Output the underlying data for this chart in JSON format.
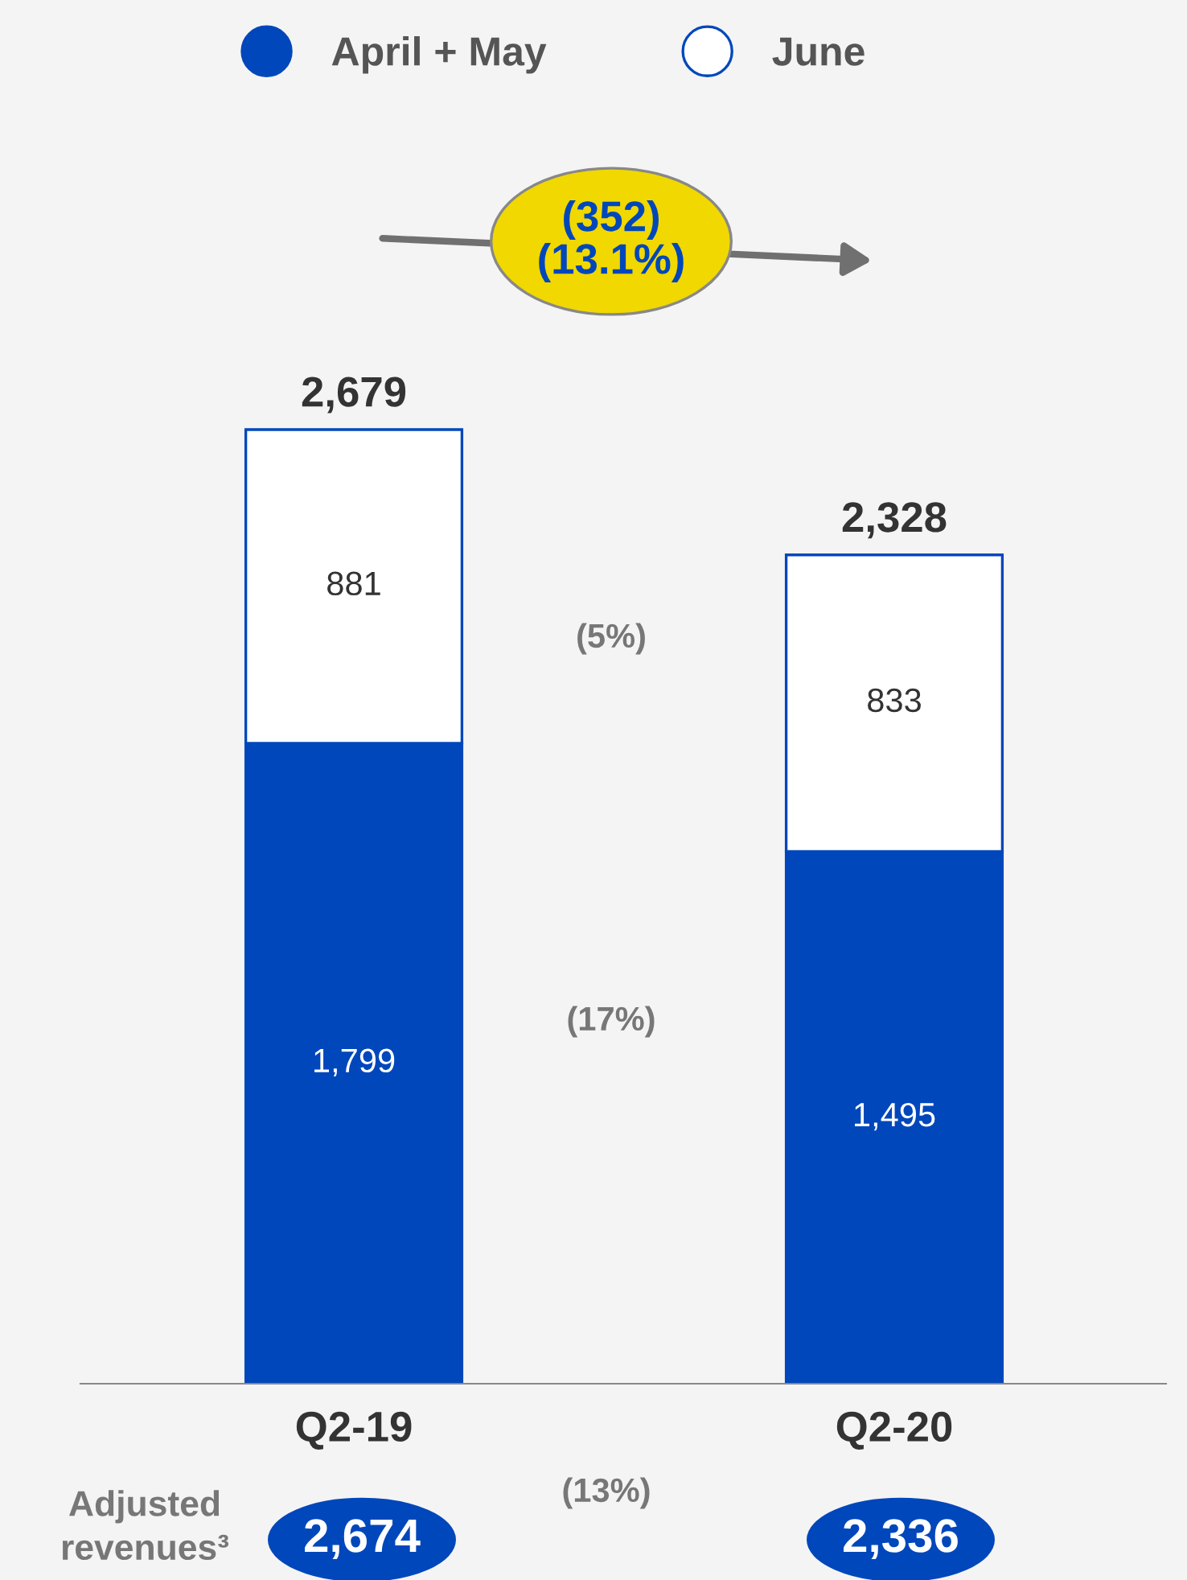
{
  "chart_data": {
    "type": "bar",
    "stacked": true,
    "categories": [
      "Q2-19",
      "Q2-20"
    ],
    "series": [
      {
        "name": "April + May",
        "color": "#0047bb",
        "values": [
          1799,
          1495
        ],
        "value_labels": [
          "1,799",
          "1,495"
        ]
      },
      {
        "name": "June",
        "color": "#ffffff",
        "values": [
          881,
          833
        ],
        "value_labels": [
          "881",
          "833"
        ]
      }
    ],
    "totals": [
      "2,679",
      "2,328"
    ],
    "annotations": [
      "(352)\n(13.1%)",
      "(5%)",
      "(17%)",
      "(13%)",
      "Adjusted\nrevenues³",
      "2,674",
      "2,336"
    ],
    "legend": "top",
    "grid": false
  }
}
